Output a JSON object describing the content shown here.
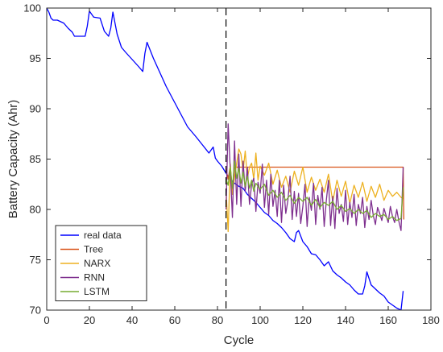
{
  "chart_data": {
    "type": "line",
    "title": "",
    "xlabel": "Cycle",
    "ylabel": "Battery Capacity (Ahr)",
    "xlim": [
      0,
      180
    ],
    "ylim": [
      70,
      100
    ],
    "xticks": [
      "0",
      "20",
      "40",
      "60",
      "80",
      "100",
      "120",
      "140",
      "160",
      "180"
    ],
    "yticks": [
      "70",
      "75",
      "80",
      "85",
      "90",
      "95",
      "100"
    ],
    "grid": false,
    "legend_position": "bottom-left",
    "vline_x": 84,
    "series": [
      {
        "name": "real data",
        "color": "#0000ff",
        "x": [
          0,
          1,
          2,
          3,
          5,
          8,
          10,
          12,
          13,
          16,
          18,
          19,
          20,
          22,
          25,
          27,
          29,
          30,
          31,
          33,
          35,
          37,
          40,
          43,
          45,
          46,
          47,
          50,
          53,
          56,
          60,
          63,
          66,
          70,
          73,
          76,
          78,
          79,
          80,
          82,
          84,
          86,
          88,
          90,
          92,
          94,
          96,
          98,
          100,
          102,
          104,
          106,
          108,
          110,
          112,
          114,
          116,
          117,
          118,
          120,
          122,
          124,
          126,
          128,
          130,
          132,
          134,
          136,
          138,
          140,
          142,
          144,
          146,
          148,
          149,
          150,
          152,
          154,
          156,
          158,
          160,
          162,
          164,
          166,
          167
        ],
        "y": [
          100,
          99.6,
          99,
          98.8,
          98.8,
          98.5,
          98,
          97.6,
          97.2,
          97.2,
          97.2,
          98.2,
          99.7,
          99.1,
          99,
          97.7,
          97.2,
          98,
          99.6,
          97.4,
          96.1,
          95.6,
          94.9,
          94.2,
          93.7,
          95.5,
          96.6,
          95,
          93.6,
          92.2,
          90.6,
          89.4,
          88.2,
          87.2,
          86.4,
          85.6,
          86.2,
          85.1,
          84.8,
          84.3,
          83.6,
          83,
          82.6,
          82.3,
          82.1,
          81.5,
          81.1,
          80.7,
          80.2,
          79.7,
          79.4,
          78.9,
          78.6,
          78.2,
          77.7,
          77.1,
          76.8,
          77.7,
          77.9,
          76.8,
          76.3,
          75.6,
          75.5,
          75,
          74.4,
          74.8,
          73.9,
          73.5,
          73.2,
          72.8,
          72.5,
          72,
          71.6,
          71.6,
          72.4,
          73.8,
          72.5,
          72.1,
          71.7,
          71.4,
          70.8,
          70.5,
          70.2,
          70,
          71.9
        ]
      },
      {
        "name": "Tree",
        "color": "#d95319",
        "x": [
          84,
          85,
          86,
          87,
          88,
          90,
          167,
          167.3
        ],
        "y": [
          84,
          83,
          84.3,
          81.5,
          84.2,
          84.2,
          84.2,
          79
        ]
      },
      {
        "name": "NARX",
        "color": "#edb120",
        "x": [
          84,
          85,
          86,
          87,
          88,
          89,
          90,
          91,
          92,
          93,
          94,
          95,
          96,
          97,
          98,
          99,
          100,
          102,
          104,
          106,
          108,
          110,
          112,
          114,
          116,
          118,
          120,
          122,
          124,
          126,
          128,
          130,
          132,
          134,
          136,
          138,
          140,
          142,
          144,
          146,
          148,
          150,
          152,
          154,
          156,
          158,
          160,
          162,
          164,
          166,
          167
        ],
        "y": [
          82,
          77.8,
          84.5,
          81.5,
          83.2,
          84.6,
          86,
          85.5,
          83.8,
          85.8,
          83.1,
          84.2,
          84.6,
          83,
          85.6,
          82.9,
          84.3,
          83.4,
          84.6,
          82.5,
          83.9,
          82.2,
          83.3,
          81.7,
          83.8,
          82.4,
          84.2,
          81.7,
          83.2,
          81.9,
          83,
          81.7,
          83.5,
          80.8,
          82.9,
          81.3,
          82.8,
          80.6,
          82.4,
          81.2,
          82.7,
          80.8,
          82.3,
          81.2,
          82.5,
          80.9,
          81.9,
          81.3,
          81.7,
          81.2,
          81.1
        ]
      },
      {
        "name": "RNN",
        "color": "#7e2f8e",
        "x": [
          84,
          85,
          86,
          87,
          88,
          89,
          90,
          91,
          92,
          93,
          94,
          95,
          96,
          97,
          98,
          99,
          100,
          101,
          102,
          103,
          104,
          105,
          106,
          107,
          108,
          109,
          110,
          111,
          112,
          113,
          114,
          115,
          116,
          117,
          118,
          119,
          120,
          121,
          122,
          123,
          124,
          125,
          126,
          127,
          128,
          129,
          130,
          131,
          132,
          133,
          134,
          135,
          136,
          137,
          138,
          139,
          140,
          141,
          142,
          143,
          144,
          145,
          146,
          147,
          148,
          149,
          150,
          151,
          152,
          153,
          154,
          155,
          156,
          157,
          158,
          159,
          160,
          161,
          162,
          163,
          164,
          165,
          166,
          167
        ],
        "y": [
          80,
          88.5,
          84,
          79.2,
          86.8,
          80.5,
          85.5,
          80.3,
          84.8,
          81.8,
          84.2,
          80.5,
          82.5,
          83.1,
          79.8,
          82.7,
          81.6,
          84.5,
          80.2,
          82.9,
          79.5,
          83.5,
          80.3,
          81.9,
          79.3,
          82.9,
          78.7,
          82.4,
          79.6,
          80.9,
          83.3,
          79,
          81.8,
          79.3,
          81.6,
          78.6,
          80.3,
          82.5,
          78.3,
          81.2,
          79.9,
          82.6,
          78.5,
          81.4,
          80,
          82.2,
          78.3,
          80.9,
          82.9,
          78.4,
          81.3,
          78.1,
          82.1,
          79.6,
          80.5,
          78.8,
          81.9,
          78.5,
          80.7,
          79.2,
          81.5,
          78.4,
          80.5,
          79.6,
          81.2,
          78.2,
          80.3,
          79,
          80.9,
          79.4,
          78.5,
          80.2,
          79.6,
          78.9,
          80.1,
          79.4,
          78.7,
          80.3,
          79.3,
          78.7,
          80,
          78.8,
          77.9,
          84.2
        ]
      },
      {
        "name": "LSTM",
        "color": "#77ac30",
        "x": [
          84,
          85,
          86,
          87,
          88,
          89,
          90,
          91,
          92,
          93,
          94,
          95,
          96,
          97,
          98,
          100,
          102,
          104,
          106,
          108,
          110,
          112,
          114,
          116,
          118,
          120,
          122,
          124,
          126,
          128,
          130,
          132,
          134,
          136,
          138,
          140,
          142,
          144,
          146,
          148,
          150,
          152,
          154,
          156,
          158,
          160,
          162,
          164,
          166,
          167
        ],
        "y": [
          83,
          82.4,
          84.2,
          82.1,
          84.8,
          83.1,
          84.1,
          82.6,
          83.7,
          82.3,
          83.3,
          82.1,
          82.9,
          81.8,
          82.6,
          82,
          82.5,
          81.4,
          81.9,
          81.2,
          81.7,
          80.9,
          81.4,
          80.6,
          81.2,
          80.8,
          81.2,
          80.4,
          81,
          80.2,
          80.7,
          80.4,
          80.8,
          80,
          80.4,
          79.8,
          80.1,
          79.6,
          80,
          79.6,
          79.9,
          79.2,
          79.6,
          79.3,
          79.5,
          79,
          79.3,
          78.9,
          79.1,
          82.2
        ]
      }
    ]
  }
}
